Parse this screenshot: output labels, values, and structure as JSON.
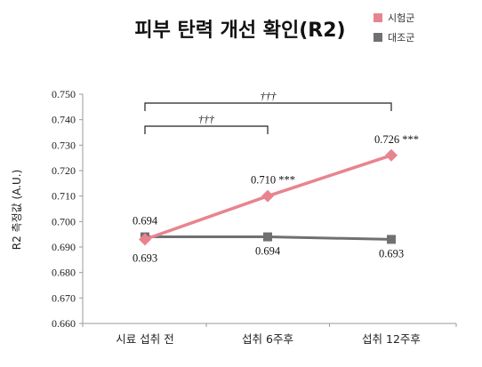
{
  "chart_data": {
    "type": "line",
    "title": "피부 탄력 개선 확인(R2)",
    "ylabel": "R2 측정값 (A.U.)",
    "xlabel": "",
    "categories": [
      "시료 섭취  전",
      "섭취 6주후",
      "섭취 12주후"
    ],
    "ylim": [
      0.66,
      0.75
    ],
    "yticks": [
      "0.660",
      "0.670",
      "0.680",
      "0.690",
      "0.700",
      "0.710",
      "0.720",
      "0.730",
      "0.740",
      "0.750"
    ],
    "grid": false,
    "legend_position": "top-right",
    "series": [
      {
        "name": "시험군",
        "color": "#e8848f",
        "marker": "diamond",
        "values": [
          0.693,
          0.71,
          0.726
        ],
        "labels": [
          "",
          "0.710",
          "0.726"
        ],
        "significance": [
          "",
          "***",
          "***"
        ]
      },
      {
        "name": "대조군",
        "color": "#707070",
        "marker": "square",
        "values": [
          0.694,
          0.694,
          0.693
        ],
        "labels": [
          "0.694",
          "0.694",
          "0.693"
        ],
        "significance": [
          "",
          "",
          ""
        ]
      }
    ],
    "extra_labels": [
      {
        "text": "0.693",
        "category_index": 0
      }
    ],
    "brackets": [
      {
        "from": 0,
        "to": 1,
        "label": "†††"
      },
      {
        "from": 0,
        "to": 2,
        "label": "†††"
      }
    ]
  }
}
